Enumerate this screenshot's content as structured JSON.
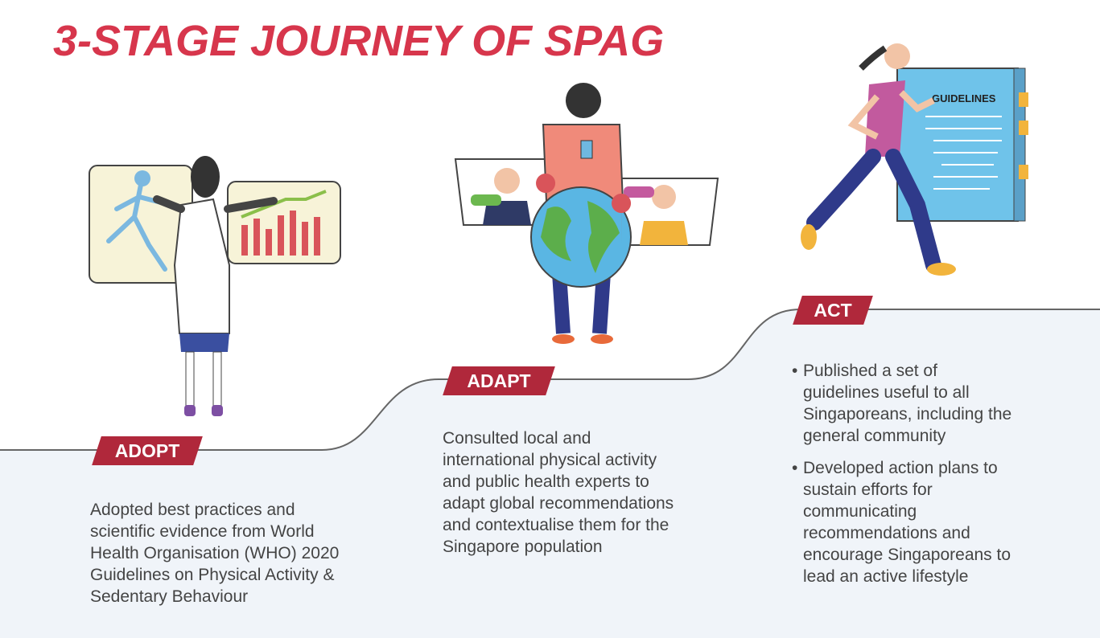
{
  "title": "3-STAGE JOURNEY OF SPAG",
  "stages": [
    {
      "label": "ADOPT",
      "text": "Adopted best practices and scientific evidence from World Health Organisation (WHO) 2020 Guidelines on Physical Activity & Sedentary Behaviour"
    },
    {
      "label": "ADAPT",
      "text": "Consulted local and international physical activity and public health experts to adapt global recommendations and contextualise them for the Singapore population"
    },
    {
      "label": "ACT",
      "bullets": [
        "Published a set of guidelines useful to all Singaporeans, including the general community",
        "Developed action plans to sustain efforts for communicating recommendations and encourage Singaporeans to lead an active lifestyle"
      ]
    }
  ],
  "book_label": "GUIDELINES",
  "colors": {
    "title": "#d7364c",
    "tag": "#b0283b",
    "ground": "#f0f4f9",
    "text": "#444444"
  }
}
